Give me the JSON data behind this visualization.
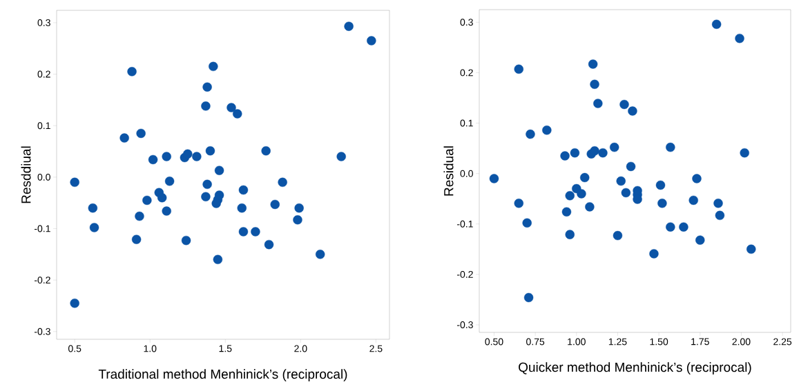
{
  "chart_data": [
    {
      "type": "scatter",
      "xlabel": "Traditional method Menhinick’s (reciprocal)",
      "ylabel": "Resddiual",
      "color": "#0b54a6",
      "marker": "circle",
      "x": [
        0.5,
        0.5,
        0.62,
        0.63,
        0.83,
        0.88,
        0.94,
        0.91,
        0.93,
        0.98,
        1.02,
        1.06,
        1.08,
        1.11,
        1.11,
        1.13,
        1.23,
        1.24,
        1.25,
        1.31,
        1.37,
        1.38,
        1.42,
        1.38,
        1.37,
        1.4,
        1.46,
        1.46,
        1.45,
        1.44,
        1.45,
        1.54,
        1.58,
        1.61,
        1.62,
        1.62,
        1.7,
        1.77,
        1.79,
        1.83,
        1.88,
        1.98,
        1.99,
        2.13,
        2.27,
        2.32,
        2.47
      ],
      "values": [
        -0.01,
        -0.245,
        -0.06,
        -0.098,
        0.076,
        0.205,
        0.085,
        -0.121,
        -0.076,
        -0.045,
        0.034,
        -0.03,
        -0.04,
        0.04,
        -0.066,
        -0.008,
        0.038,
        -0.123,
        0.045,
        0.04,
        0.138,
        0.175,
        0.215,
        -0.014,
        -0.038,
        0.051,
        0.013,
        -0.035,
        -0.044,
        -0.051,
        -0.16,
        0.135,
        0.123,
        -0.06,
        -0.025,
        -0.106,
        -0.106,
        0.051,
        -0.131,
        -0.053,
        -0.01,
        -0.083,
        -0.06,
        -0.15,
        0.04,
        0.293,
        0.265
      ],
      "xlim": [
        0.38,
        2.59
      ],
      "ylim": [
        -0.315,
        0.324
      ],
      "xticks": [
        {
          "value": 0.5,
          "label": "0.5"
        },
        {
          "value": 1,
          "label": "1.0"
        },
        {
          "value": 1.5,
          "label": "1.5"
        },
        {
          "value": 2,
          "label": "2.0"
        },
        {
          "value": 2.5,
          "label": "2.5"
        }
      ],
      "yticks": [
        {
          "value": -0.3,
          "label": "-0.3"
        },
        {
          "value": -0.2,
          "label": "-0.2"
        },
        {
          "value": -0.1,
          "label": "-0.1"
        },
        {
          "value": 0,
          "label": "0.0"
        },
        {
          "value": 0.1,
          "label": "0.1"
        },
        {
          "value": 0.2,
          "label": "0.2"
        },
        {
          "value": 0.3,
          "label": "0.3"
        }
      ]
    },
    {
      "type": "scatter",
      "xlabel": "Quicker method Menhinick’s (reciprocal)",
      "ylabel": "Residual",
      "color": "#0b54a6",
      "marker": "circle",
      "x": [
        0.5,
        0.65,
        0.72,
        0.82,
        0.93,
        0.99,
        1.09,
        1.11,
        1.16,
        1.23,
        1.1,
        1.11,
        1.13,
        1.29,
        1.34,
        1.57,
        1.85,
        1.99,
        2.02,
        1.33,
        1.05,
        1.27,
        1.73,
        0.65,
        0.7,
        0.71,
        0.94,
        0.96,
        0.96,
        1.0,
        1.03,
        1.08,
        1.25,
        1.3,
        1.37,
        1.37,
        1.37,
        1.47,
        1.51,
        1.52,
        1.57,
        1.65,
        1.71,
        1.75,
        1.86,
        1.87,
        2.06
      ],
      "values": [
        -0.01,
        0.207,
        0.078,
        0.086,
        0.035,
        0.041,
        0.039,
        0.045,
        0.041,
        0.052,
        0.217,
        0.177,
        0.139,
        0.137,
        0.124,
        0.052,
        0.296,
        0.268,
        0.041,
        0.014,
        -0.008,
        -0.015,
        -0.01,
        -0.059,
        -0.098,
        -0.246,
        -0.076,
        -0.121,
        -0.044,
        -0.03,
        -0.04,
        -0.066,
        -0.123,
        -0.038,
        -0.034,
        -0.042,
        -0.051,
        -0.159,
        -0.023,
        -0.059,
        -0.106,
        -0.106,
        -0.053,
        -0.132,
        -0.059,
        -0.083,
        -0.15
      ],
      "xlim": [
        0.41,
        2.3
      ],
      "ylim": [
        -0.315,
        0.325
      ],
      "xticks": [
        {
          "value": 0.5,
          "label": "0.50"
        },
        {
          "value": 0.75,
          "label": "0.75"
        },
        {
          "value": 1,
          "label": "1.00"
        },
        {
          "value": 1.25,
          "label": "1.25"
        },
        {
          "value": 1.5,
          "label": "1.50"
        },
        {
          "value": 1.75,
          "label": "1.75"
        },
        {
          "value": 2,
          "label": "2.00"
        },
        {
          "value": 2.25,
          "label": "2.25"
        }
      ],
      "yticks": [
        {
          "value": -0.3,
          "label": "-0.3"
        },
        {
          "value": -0.2,
          "label": "-0.2"
        },
        {
          "value": -0.1,
          "label": "-0.1"
        },
        {
          "value": 0,
          "label": "0.0"
        },
        {
          "value": 0.1,
          "label": "0.1"
        },
        {
          "value": 0.2,
          "label": "0.2"
        },
        {
          "value": 0.3,
          "label": "0.3"
        }
      ]
    }
  ]
}
